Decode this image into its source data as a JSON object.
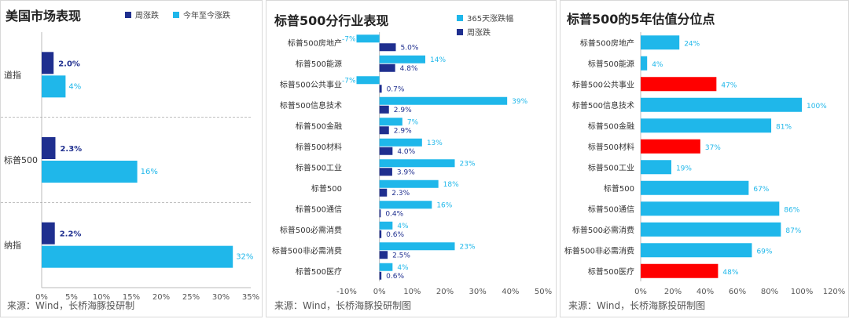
{
  "colors": {
    "weekly": "#1f2f8f",
    "ytd": "#1fb7ea",
    "highlight": "#ff0000",
    "bar3": "#1fb7ea"
  },
  "panels": {
    "p1": {
      "title": "美国市场表现",
      "source": "来源：Wind，长桥海豚投研制",
      "legend": {
        "weekly": "周涨跌",
        "ytd": "今年至今涨跌"
      }
    },
    "p2": {
      "title": "标普500分行业表现",
      "source": "来源：Wind，长桥海豚投研制图",
      "legend": {
        "ytd": "365天涨跌幅",
        "weekly": "周涨跌"
      }
    },
    "p3": {
      "title": "标普500的5年估值分位点",
      "source": "来源：Wind，长桥海豚投研制图"
    }
  },
  "chart_data": [
    {
      "type": "bar",
      "orientation": "horizontal",
      "title": "美国市场表现",
      "categories": [
        "道指",
        "标普500",
        "纳指"
      ],
      "series": [
        {
          "name": "周涨跌",
          "values": [
            2.0,
            2.3,
            2.2
          ],
          "labels": [
            "2.0%",
            "2.3%",
            "2.2%"
          ]
        },
        {
          "name": "今年至今涨跌",
          "values": [
            4,
            16,
            32
          ],
          "labels": [
            "4%",
            "16%",
            "32%"
          ]
        }
      ],
      "xlim": [
        0,
        35
      ],
      "xticks": [
        "0%",
        "5%",
        "10%",
        "15%",
        "20%",
        "25%",
        "30%",
        "35%"
      ]
    },
    {
      "type": "bar",
      "orientation": "horizontal",
      "title": "标普500分行业表现",
      "categories": [
        "标普500房地产",
        "标普500能源",
        "标普500公共事业",
        "标普500信息技术",
        "标普500金融",
        "标普500材料",
        "标普500工业",
        "标普500",
        "标普500通信",
        "标普500必需消费",
        "标普500非必需消费",
        "标普500医疗"
      ],
      "series": [
        {
          "name": "365天涨跌幅",
          "values": [
            -7,
            14,
            -7,
            39,
            7,
            13,
            23,
            18,
            16,
            4,
            23,
            4
          ],
          "labels": [
            "-7%",
            "14%",
            "-7%",
            "39%",
            "7%",
            "13%",
            "23%",
            "18%",
            "16%",
            "4%",
            "23%",
            "4%"
          ]
        },
        {
          "name": "周涨跌",
          "values": [
            5.0,
            4.8,
            0.7,
            2.9,
            2.9,
            4.0,
            3.9,
            2.3,
            0.4,
            0.6,
            2.5,
            0.6
          ],
          "labels": [
            "5.0%",
            "4.8%",
            "0.7%",
            "2.9%",
            "2.9%",
            "4.0%",
            "3.9%",
            "2.3%",
            "0.4%",
            "0.6%",
            "2.5%",
            "0.6%"
          ]
        }
      ],
      "xlim": [
        -10,
        50
      ],
      "xticks": [
        "-10%",
        "0%",
        "10%",
        "20%",
        "30%",
        "40%",
        "50%"
      ]
    },
    {
      "type": "bar",
      "orientation": "horizontal",
      "title": "标普500的5年估值分位点",
      "categories": [
        "标普500房地产",
        "标普500能源",
        "标普500公共事业",
        "标普500信息技术",
        "标普500金融",
        "标普500材料",
        "标普500工业",
        "标普500",
        "标普500通信",
        "标普500必需消费",
        "标普500非必需消费",
        "标普500医疗"
      ],
      "values": [
        24,
        4,
        47,
        100,
        81,
        37,
        19,
        67,
        86,
        87,
        69,
        48
      ],
      "labels": [
        "24%",
        "4%",
        "47%",
        "100%",
        "81%",
        "37%",
        "19%",
        "67%",
        "86%",
        "87%",
        "69%",
        "48%"
      ],
      "highlighted": [
        false,
        false,
        true,
        false,
        false,
        true,
        false,
        false,
        false,
        false,
        false,
        true
      ],
      "xlim": [
        0,
        120
      ],
      "xticks": [
        "0%",
        "20%",
        "40%",
        "60%",
        "80%",
        "100%",
        "120%"
      ]
    }
  ]
}
